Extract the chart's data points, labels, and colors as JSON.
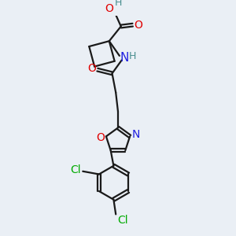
{
  "bg_color": "#eaeff5",
  "bond_color": "#1a1a1a",
  "bond_width": 1.6,
  "atom_colors": {
    "O": "#e00000",
    "N": "#2020e0",
    "Cl": "#00aa00",
    "H_teal": "#4a8f8f",
    "C": "#1a1a1a"
  }
}
